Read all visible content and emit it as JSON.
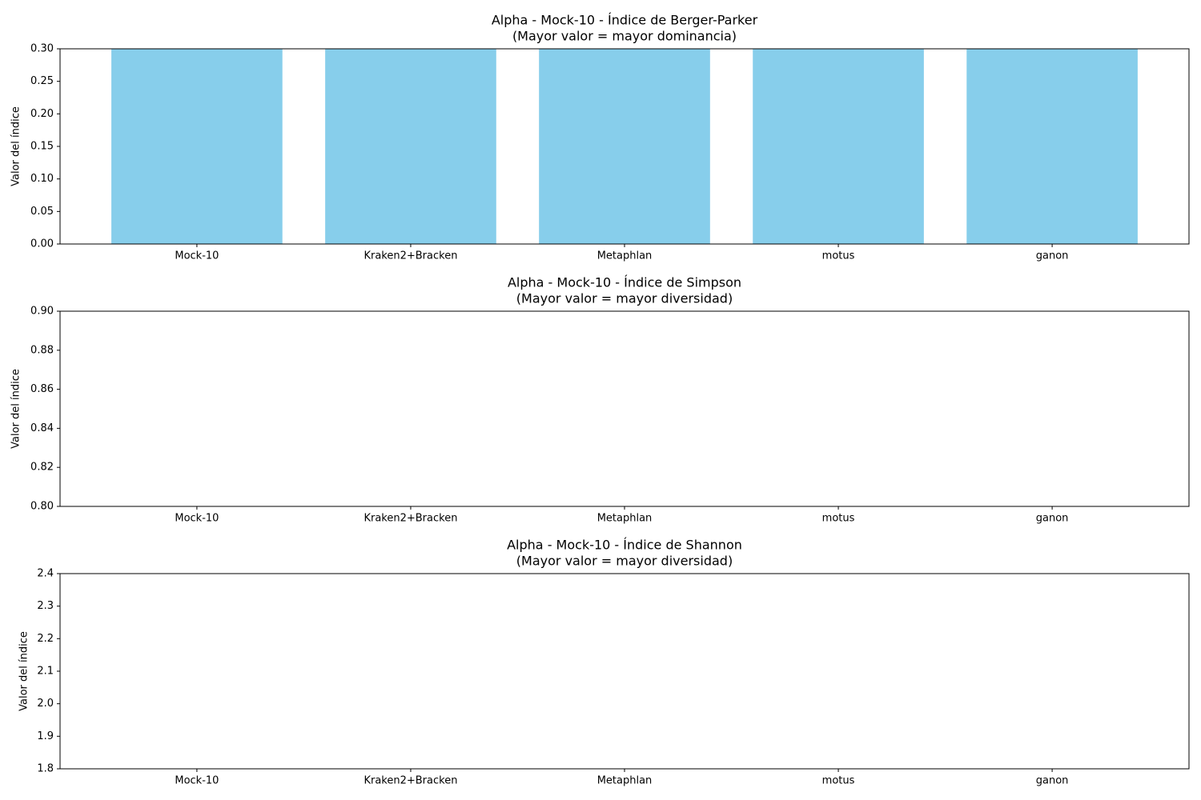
{
  "chart_data": [
    {
      "type": "bar",
      "title": "Alpha - Mock-10 - Índice de Berger-Parker",
      "subtitle": "(Mayor valor = mayor dominancia)",
      "ylabel": "Valor del índice",
      "categories": [
        "Mock-10",
        "Kraken2+Bracken",
        "Metaphlan",
        "motus",
        "ganon"
      ],
      "values": [
        0.3,
        0.3,
        0.3,
        0.3,
        0.3
      ],
      "color": "#87ceeb",
      "ylim": [
        0,
        0.3
      ],
      "yticks": [
        {
          "value": 0,
          "label": "0.00"
        },
        0.05,
        {
          "value": 0.1,
          "label": "0.10"
        },
        0.15,
        {
          "value": 0.2,
          "label": "0.20"
        },
        0.25,
        {
          "value": 0.3,
          "label": "0.30"
        }
      ],
      "grid": false
    },
    {
      "type": "bar",
      "title": "Alpha - Mock-10 - Índice de Simpson",
      "subtitle": "(Mayor valor = mayor diversidad)",
      "ylabel": "Valor del índice",
      "categories": [
        "Mock-10",
        "Kraken2+Bracken",
        "Metaphlan",
        "motus",
        "ganon"
      ],
      "values": [
        null,
        null,
        null,
        null,
        null
      ],
      "color": "#87ceeb",
      "ylim": [
        0.8,
        0.9
      ],
      "yticks": [
        {
          "value": 0.8,
          "label": "0.80"
        },
        0.82,
        0.84,
        0.86,
        0.88,
        {
          "value": 0.9,
          "label": "0.90"
        }
      ],
      "grid": false
    },
    {
      "type": "bar",
      "title": "Alpha - Mock-10 - Índice de Shannon",
      "subtitle": "(Mayor valor = mayor diversidad)",
      "ylabel": "Valor del índice",
      "categories": [
        "Mock-10",
        "Kraken2+Bracken",
        "Metaphlan",
        "motus",
        "ganon"
      ],
      "values": [
        null,
        null,
        null,
        null,
        null
      ],
      "color": "#87ceeb",
      "ylim": [
        1.8,
        2.4
      ],
      "yticks": [
        1.8,
        1.9,
        {
          "value": 2,
          "label": "2.0"
        },
        2.1,
        2.2,
        2.3,
        2.4
      ],
      "grid": false
    }
  ]
}
